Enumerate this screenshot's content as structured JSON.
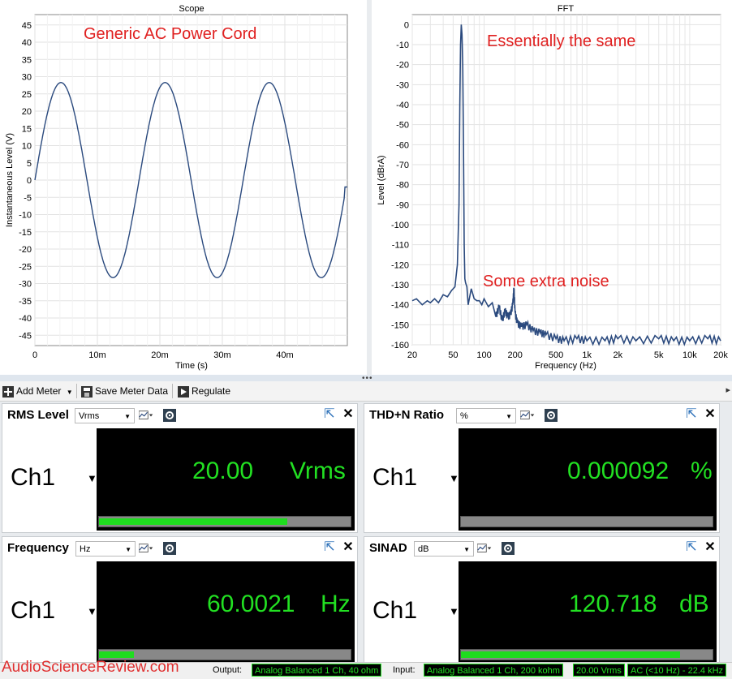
{
  "scope": {
    "title": "Scope",
    "annotation": "Generic AC Power Cord",
    "xlabel": "Time (s)",
    "ylabel": "Instantaneous Level (V)",
    "xticks": [
      "0",
      "10m",
      "20m",
      "30m",
      "40m"
    ],
    "yticks": [
      "45",
      "40",
      "35",
      "30",
      "25",
      "20",
      "15",
      "10",
      "5",
      "0",
      "-5",
      "-10",
      "-15",
      "-20",
      "-25",
      "-30",
      "-35",
      "-40",
      "-45"
    ]
  },
  "fft": {
    "title": "FFT",
    "annotation_top": "Essentially the same",
    "annotation_mid": "Some extra noise",
    "xlabel": "Frequency (Hz)",
    "ylabel": "Level (dBrA)",
    "xticks": [
      "20",
      "50",
      "100",
      "200",
      "500",
      "1k",
      "2k",
      "5k",
      "10k",
      "20k"
    ],
    "yticks": [
      "0",
      "-10",
      "-20",
      "-30",
      "-40",
      "-50",
      "-60",
      "-70",
      "-80",
      "-90",
      "-100",
      "-110",
      "-120",
      "-130",
      "-140",
      "-150",
      "-160"
    ]
  },
  "chart_data": [
    {
      "type": "line",
      "title": "Scope",
      "xlabel": "Time (s)",
      "ylabel": "Instantaneous Level (V)",
      "xlim": [
        0,
        0.05
      ],
      "ylim": [
        -48,
        48
      ],
      "series": [
        {
          "x": [
            0,
            0.001,
            0.002,
            0.003,
            0.004,
            0.00417,
            0.005,
            0.006,
            0.007,
            0.008,
            0.00833,
            0.009,
            0.01,
            0.011,
            0.012,
            0.0125,
            0.013,
            0.014,
            0.015,
            0.016,
            0.01667,
            0.017,
            0.018,
            0.019,
            0.02,
            0.02083,
            0.021,
            0.022,
            0.023,
            0.024,
            0.025,
            0.026,
            0.027,
            0.028,
            0.029,
            0.02917,
            0.03,
            0.031,
            0.032,
            0.033,
            0.0333,
            0.034,
            0.035,
            0.036,
            0.037,
            0.0375,
            0.038,
            0.039,
            0.04,
            0.041,
            0.0417,
            0.042,
            0.043,
            0.044,
            0.045,
            0.0458,
            0.046,
            0.047,
            0.048,
            0.049,
            0.05
          ],
          "values": [
            0,
            10.8,
            19.6,
            25.8,
            28.2,
            28.3,
            26.9,
            22.3,
            14.8,
            5.4,
            0,
            -5.6,
            -16.4,
            -24.4,
            -28.0,
            -28.3,
            -27.9,
            -24.2,
            -16.1,
            -5.3,
            0,
            5.6,
            16.3,
            24.3,
            28.0,
            28.3,
            27.9,
            24.2,
            16.2,
            5.4,
            0,
            -10.8,
            -19.6,
            -25.8,
            -28.2,
            -28.3,
            -26.9,
            -22.3,
            -14.8,
            -5.4,
            0,
            5.6,
            16.4,
            24.4,
            28.0,
            28.3,
            27.9,
            24.2,
            16.1,
            5.3,
            0,
            -5.6,
            -16.3,
            -24.3,
            -28.0,
            -28.3,
            -27.9,
            -24.2,
            -16.2,
            -5.4,
            -2.0
          ]
        }
      ]
    },
    {
      "type": "line",
      "title": "FFT",
      "xlabel": "Frequency (Hz)",
      "ylabel": "Level (dBrA)",
      "xscale": "log",
      "xlim": [
        20,
        20000
      ],
      "ylim": [
        -160,
        5
      ],
      "series": [
        {
          "x": [
            20,
            22,
            25,
            28,
            30,
            33,
            36,
            40,
            44,
            48,
            52,
            55,
            57,
            58,
            59,
            60,
            61,
            62,
            63,
            64,
            65,
            66,
            68,
            70,
            75,
            80,
            85,
            90,
            95,
            100,
            110,
            120,
            130,
            140,
            150,
            160,
            170,
            180,
            190,
            195,
            200,
            210,
            230,
            260,
            300,
            350,
            400,
            500,
            600,
            800,
            1000,
            1500,
            2000,
            3000,
            5000,
            7000,
            10000,
            15000,
            20000
          ],
          "values": [
            -138,
            -137,
            -140,
            -138,
            -139,
            -137,
            -139,
            -135,
            -136,
            -133,
            -131,
            -120,
            -90,
            -40,
            -10,
            0,
            -5,
            -20,
            -60,
            -110,
            -127,
            -129,
            -131,
            -140,
            -132,
            -137,
            -138,
            -138,
            -140,
            -137,
            -141,
            -139,
            -146,
            -141,
            -148,
            -143,
            -146,
            -145,
            -140,
            -132,
            -144,
            -149,
            -151,
            -150,
            -153,
            -154,
            -155,
            -157,
            -158,
            -157,
            -158,
            -158,
            -157,
            -158,
            -157,
            -158,
            -158,
            -157,
            -158
          ]
        }
      ]
    }
  ],
  "toolbar": {
    "add_meter": "Add Meter",
    "save_meter_data": "Save Meter Data",
    "regulate": "Regulate"
  },
  "meters": [
    {
      "title": "RMS Level",
      "unit_select": "Vrms",
      "channel": "Ch1",
      "reading": "20.00",
      "unit": "Vrms",
      "bar_fraction": 0.86
    },
    {
      "title": "THD+N Ratio",
      "unit_select": "%",
      "channel": "Ch1",
      "reading": "0.000092",
      "unit": "%",
      "bar_fraction": 0.0
    },
    {
      "title": "Frequency",
      "unit_select": "Hz",
      "channel": "Ch1",
      "reading": "60.0021",
      "unit": "Hz",
      "bar_fraction": 0.16
    },
    {
      "title": "SINAD",
      "unit_select": "dB",
      "channel": "Ch1",
      "reading": "120.718",
      "unit": "dB",
      "bar_fraction": 1.0
    }
  ],
  "statusbar": {
    "watermark": "AudioScienceReview.com",
    "output_label": "Output:",
    "output_value": "Analog Balanced 1 Ch, 40 ohm",
    "input_label": "Input:",
    "input_value": "Analog Balanced 1 Ch, 200 kohm",
    "level_value": "20.00 Vrms",
    "bandwidth_value": "AC (<10 Hz) - 22.4 kHz"
  },
  "colors": {
    "trace": "#2b4a7e",
    "meter_green": "#22e022",
    "annotation": "#e02020"
  }
}
